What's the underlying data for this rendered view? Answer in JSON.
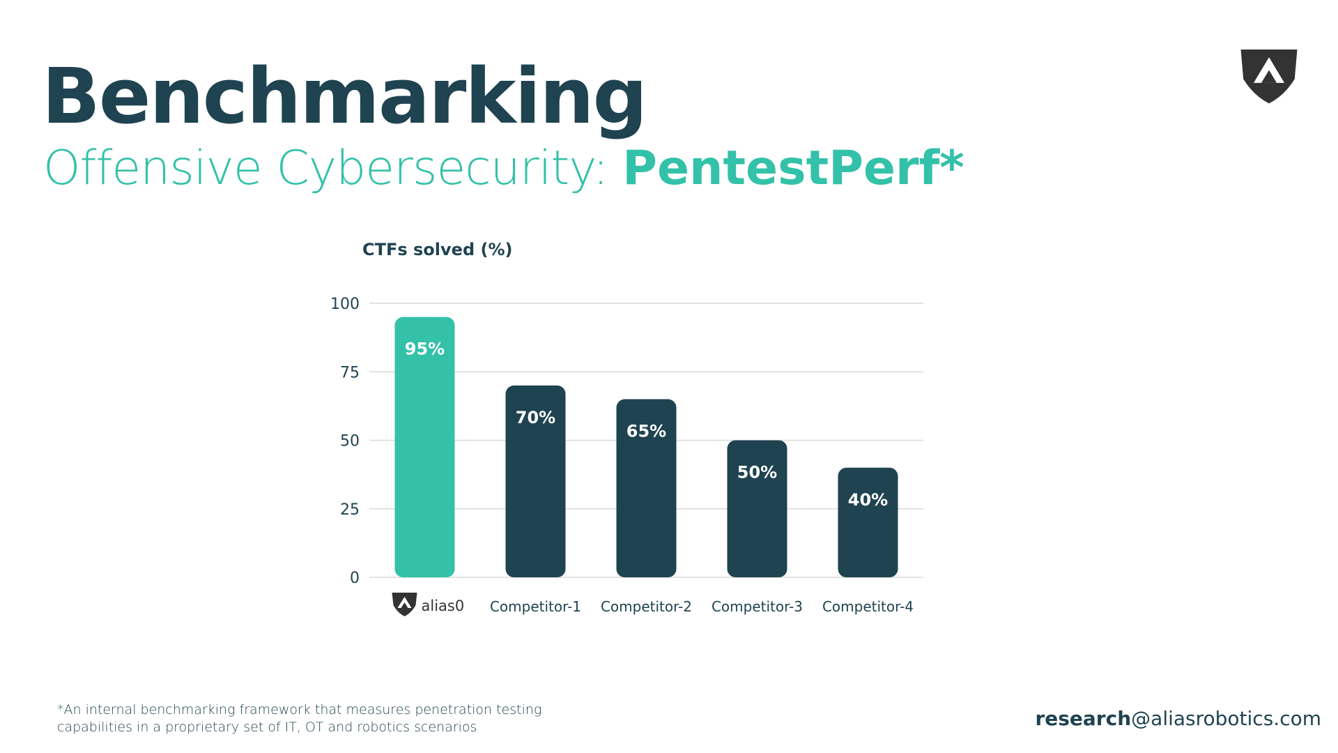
{
  "slide": {
    "title": "Benchmarking",
    "subtitle_prefix": "Offensive Cybersecurity: ",
    "subtitle_highlight": "PentestPerf*",
    "footnote_line1": "*An internal benchmarking framework that measures penetration testing",
    "footnote_line2": "capabilities in a proprietary set of IT, OT and robotics scenarios",
    "contact_bold": "research",
    "contact_rest": "@aliasrobotics.com",
    "logo_icon": "alias-shield-logo-icon"
  },
  "colors": {
    "dark": "#1f4350",
    "accent": "#33c1a9",
    "grid": "#d9d9d9"
  },
  "chart_data": {
    "type": "bar",
    "title": "CTFs solved (%)",
    "categories": [
      "alias0",
      "Competitor-1",
      "Competitor-2",
      "Competitor-3",
      "Competitor-4"
    ],
    "values": [
      95,
      70,
      65,
      50,
      40
    ],
    "value_labels": [
      "95%",
      "70%",
      "65%",
      "50%",
      "40%"
    ],
    "highlight_index": 0,
    "ylim": [
      0,
      100
    ],
    "yticks": [
      0,
      25,
      50,
      75,
      100
    ],
    "grid": true,
    "legend": "none"
  }
}
